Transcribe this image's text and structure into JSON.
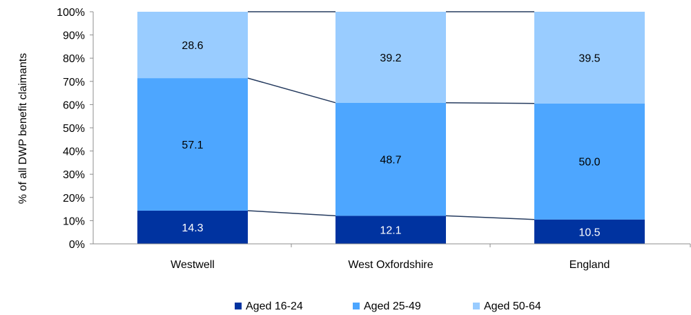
{
  "chart_data": {
    "type": "bar",
    "stacked": true,
    "percent_stacked": true,
    "categories": [
      "Westwell",
      "West Oxfordshire",
      "England"
    ],
    "series": [
      {
        "name": "Aged 16-24",
        "values": [
          14.3,
          12.1,
          10.5
        ],
        "color": "#0033a0",
        "label_color": "#ffffff"
      },
      {
        "name": "Aged 25-49",
        "values": [
          57.1,
          48.7,
          50.0
        ],
        "color": "#4da6ff",
        "label_color": "#000000"
      },
      {
        "name": "Aged 50-64",
        "values": [
          28.6,
          39.2,
          39.5
        ],
        "color": "#99ccff",
        "label_color": "#000000"
      }
    ],
    "data_labels": [
      [
        "14.3",
        "12.1",
        "10.5"
      ],
      [
        "57.1",
        "48.7",
        "50.0"
      ],
      [
        "28.6",
        "39.2",
        "39.5"
      ]
    ],
    "ylabel": "% of all DWP benefit claimants",
    "xlabel": "",
    "ylim": [
      0,
      100
    ],
    "yticks": [
      "0%",
      "10%",
      "20%",
      "30%",
      "40%",
      "50%",
      "60%",
      "70%",
      "80%",
      "90%",
      "100%"
    ],
    "series_lines": true,
    "series_line_color": "#243a5e",
    "grid": false,
    "legend": "bottom"
  }
}
